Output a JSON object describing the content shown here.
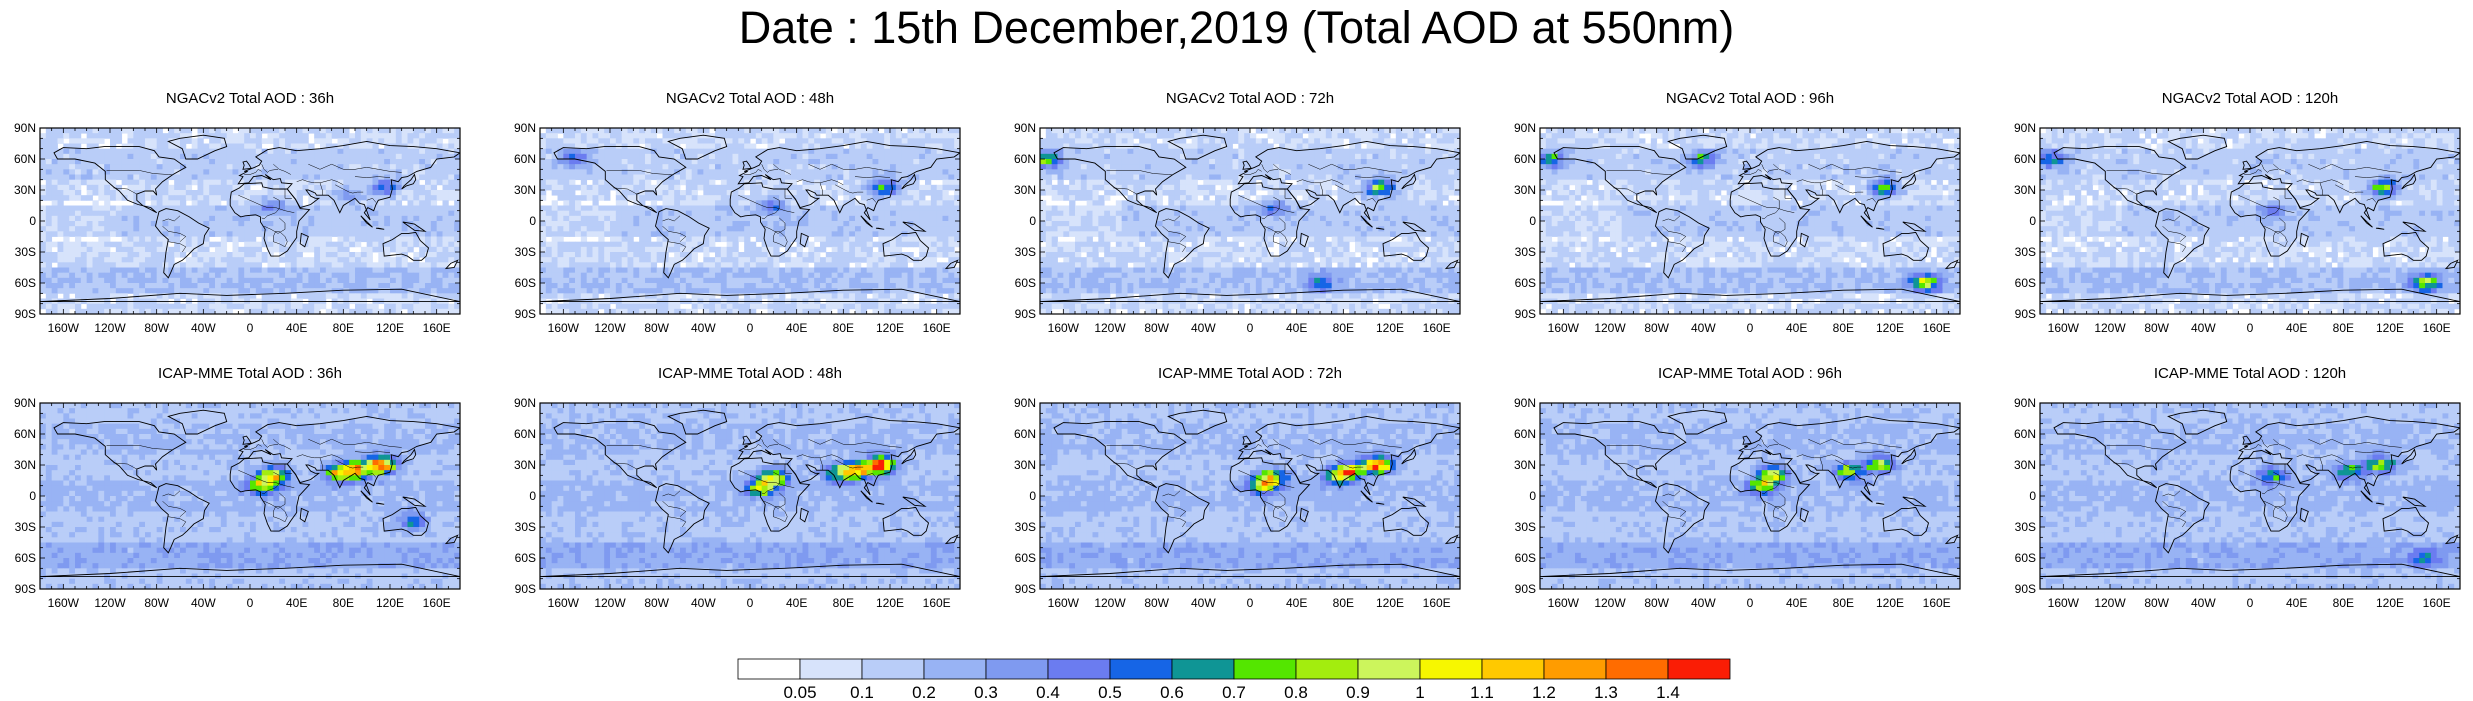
{
  "title": "Date : 15th December,2019 (Total AOD at 550nm)",
  "panels": [
    {
      "title": "NGACv2 Total AOD : 36h",
      "model": "NGACv2",
      "lead": "36h",
      "hotspots": [
        [
          115,
          32,
          0.5
        ],
        [
          20,
          15,
          0.3
        ],
        [
          85,
          25,
          0.25
        ]
      ]
    },
    {
      "title": "NGACv2 Total AOD : 48h",
      "model": "NGACv2",
      "lead": "48h",
      "hotspots": [
        [
          115,
          32,
          0.7
        ],
        [
          20,
          15,
          0.35
        ],
        [
          -150,
          60,
          0.4
        ]
      ]
    },
    {
      "title": "NGACv2 Total AOD : 72h",
      "model": "NGACv2",
      "lead": "72h",
      "hotspots": [
        [
          112,
          32,
          0.8
        ],
        [
          -175,
          60,
          0.7
        ],
        [
          20,
          12,
          0.35
        ],
        [
          60,
          -60,
          0.45
        ]
      ]
    },
    {
      "title": "NGACv2 Total AOD : 96h",
      "model": "NGACv2",
      "lead": "96h",
      "hotspots": [
        [
          115,
          32,
          0.6
        ],
        [
          -170,
          60,
          0.6
        ],
        [
          150,
          -60,
          0.8
        ],
        [
          -40,
          60,
          0.55
        ]
      ]
    },
    {
      "title": "NGACv2 Total AOD : 120h",
      "model": "NGACv2",
      "lead": "120h",
      "hotspots": [
        [
          115,
          32,
          0.8
        ],
        [
          150,
          -60,
          0.8
        ],
        [
          -170,
          60,
          0.55
        ],
        [
          20,
          10,
          0.35
        ]
      ]
    },
    {
      "title": "ICAP-MME Total AOD : 36h",
      "model": "ICAP-MME",
      "lead": "36h",
      "hotspots": [
        [
          112,
          30,
          1.4
        ],
        [
          90,
          25,
          1.1
        ],
        [
          20,
          20,
          1.0
        ],
        [
          10,
          10,
          0.7
        ],
        [
          75,
          22,
          0.8
        ],
        [
          140,
          -25,
          0.4
        ]
      ]
    },
    {
      "title": "ICAP-MME Total AOD : 48h",
      "model": "ICAP-MME",
      "lead": "48h",
      "hotspots": [
        [
          112,
          30,
          1.3
        ],
        [
          92,
          24,
          1.1
        ],
        [
          20,
          18,
          0.9
        ],
        [
          10,
          8,
          0.8
        ],
        [
          75,
          22,
          0.7
        ]
      ]
    },
    {
      "title": "ICAP-MME Total AOD : 72h",
      "model": "ICAP-MME",
      "lead": "72h",
      "hotspots": [
        [
          110,
          30,
          1.3
        ],
        [
          85,
          24,
          1.0
        ],
        [
          20,
          18,
          0.85
        ],
        [
          10,
          10,
          0.7
        ],
        [
          75,
          18,
          0.6
        ]
      ]
    },
    {
      "title": "ICAP-MME Total AOD : 96h",
      "model": "ICAP-MME",
      "lead": "96h",
      "hotspots": [
        [
          112,
          30,
          0.8
        ],
        [
          85,
          24,
          0.75
        ],
        [
          20,
          20,
          0.8
        ],
        [
          10,
          10,
          0.6
        ]
      ]
    },
    {
      "title": "ICAP-MME Total AOD : 120h",
      "model": "ICAP-MME",
      "lead": "120h",
      "hotspots": [
        [
          112,
          30,
          0.8
        ],
        [
          85,
          24,
          0.6
        ],
        [
          20,
          20,
          0.55
        ],
        [
          150,
          -60,
          0.4
        ]
      ]
    }
  ],
  "axes": {
    "lat_ticks": [
      "90N",
      "60N",
      "30N",
      "0",
      "30S",
      "60S",
      "90S"
    ],
    "lat_values": [
      90,
      60,
      30,
      0,
      -30,
      -60,
      -90
    ],
    "lon_ticks": [
      "160W",
      "120W",
      "80W",
      "40W",
      "0",
      "40E",
      "80E",
      "120E",
      "160E"
    ],
    "lon_values": [
      -160,
      -120,
      -80,
      -40,
      0,
      40,
      80,
      120,
      160
    ],
    "lon_range": [
      -180,
      180
    ],
    "lat_range": [
      -90,
      90
    ]
  },
  "colorbar": {
    "labels": [
      "0.05",
      "0.1",
      "0.2",
      "0.3",
      "0.4",
      "0.5",
      "0.6",
      "0.7",
      "0.8",
      "0.9",
      "1",
      "1.1",
      "1.2",
      "1.3",
      "1.4"
    ],
    "colors": [
      "#ffffff",
      "#d7e3fb",
      "#b9cdf8",
      "#98b3f4",
      "#7f9af0",
      "#6b7cf0",
      "#1665e6",
      "#0f9595",
      "#54e600",
      "#a3ed0e",
      "#ccf55c",
      "#f7f700",
      "#ffc900",
      "#ff9c00",
      "#ff6c00",
      "#fa1d05"
    ]
  }
}
